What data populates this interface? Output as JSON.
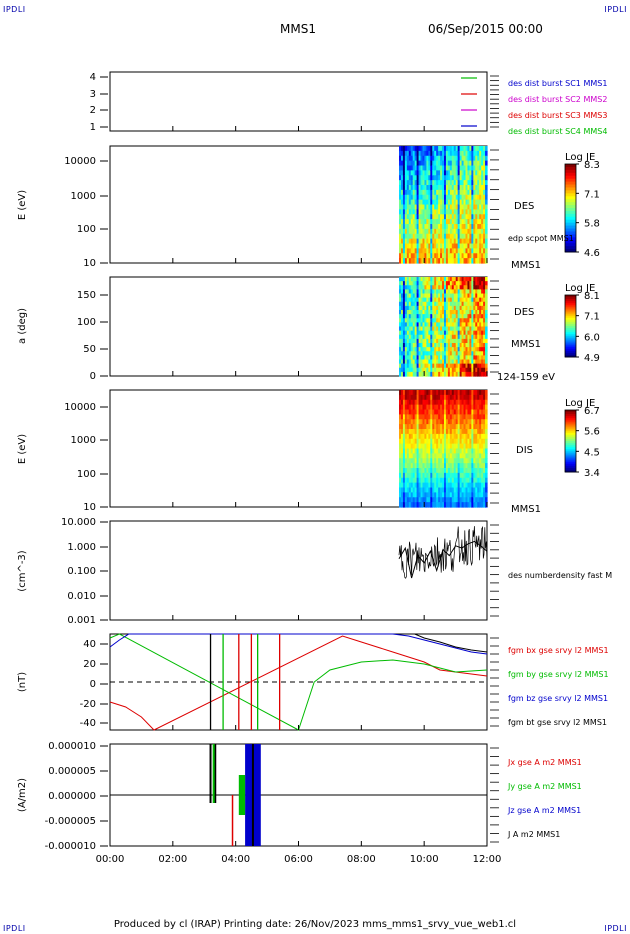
{
  "corners": {
    "top_left": "IPDLI",
    "top_right": "IPDLI",
    "bottom_left": "IPDLI",
    "bottom_right": "IPDLI"
  },
  "header": {
    "spacecraft": "MMS1",
    "datetime": "06/Sep/2015 00:00"
  },
  "footer": {
    "text": "Produced by cl (IRAP)   Printing date: 26/Nov/2023   mms_mms1_srvy_vue_web1.cl"
  },
  "colors": {
    "sc1": "#0000cc",
    "sc2": "#cc00cc",
    "sc3": "#dd0000",
    "sc4": "#00bb00",
    "black": "#000000"
  },
  "chart_data": [
    {
      "type": "line",
      "panel": "spacecraft-availability",
      "yticks": [
        "4",
        "3",
        "2",
        "1"
      ],
      "series": [
        {
          "name": "des dist burst SC1 MMS1",
          "color": "#0000cc"
        },
        {
          "name": "des dist burst SC2 MMS2",
          "color": "#cc00cc"
        },
        {
          "name": "des dist burst SC3 MMS3",
          "color": "#dd0000"
        },
        {
          "name": "des dist burst SC4 MMS4",
          "color": "#00bb00"
        }
      ]
    },
    {
      "type": "heatmap",
      "panel": "des-energy",
      "ylabel": "E (eV)",
      "yticks": [
        "10000",
        "1000",
        "100",
        "10"
      ],
      "side_labels": [
        "DES",
        "edp scpot MMS1",
        "MMS1"
      ],
      "colorbar": {
        "title": "Log JE",
        "ticks": [
          "8.3",
          "7.1",
          "5.8",
          "4.6"
        ],
        "min": 4.6,
        "max": 8.3
      },
      "data_start_hour": 9.2
    },
    {
      "type": "heatmap",
      "panel": "des-pitch",
      "ylabel": "a (deg)",
      "yticks": [
        "150",
        "100",
        "50",
        "0"
      ],
      "side_labels": [
        "DES",
        "MMS1",
        "124-159 eV"
      ],
      "colorbar": {
        "title": "Log JE",
        "ticks": [
          "8.1",
          "7.1",
          "6.0",
          "4.9"
        ],
        "min": 4.9,
        "max": 8.1
      },
      "data_start_hour": 9.2
    },
    {
      "type": "heatmap",
      "panel": "dis-energy",
      "ylabel": "E (eV)",
      "yticks": [
        "10000",
        "1000",
        "100",
        "10"
      ],
      "side_labels": [
        "DIS",
        "MMS1"
      ],
      "colorbar": {
        "title": "Log JE",
        "ticks": [
          "6.7",
          "5.6",
          "4.5",
          "3.4"
        ],
        "min": 3.4,
        "max": 6.7
      },
      "data_start_hour": 9.2
    },
    {
      "type": "line",
      "panel": "density",
      "ylabel": "(cm^-3)",
      "yticks": [
        "10.000",
        "1.000",
        "0.100",
        "0.010",
        "0.001"
      ],
      "yscale": "log",
      "ylim": [
        0.001,
        10
      ],
      "series": [
        {
          "name": "des numberdensity fast M",
          "color": "#000000",
          "x": [
            9.2,
            9.4,
            9.6,
            9.8,
            10.0,
            10.2,
            10.4,
            10.6,
            10.8,
            11.0,
            11.2,
            11.4,
            11.6,
            11.8,
            12.0
          ],
          "y": [
            0.3,
            0.8,
            0.05,
            0.4,
            0.2,
            0.6,
            0.1,
            0.7,
            0.4,
            1.0,
            0.8,
            1.2,
            1.5,
            1.0,
            0.6
          ]
        }
      ]
    },
    {
      "type": "line",
      "panel": "magnetic-field",
      "ylabel": "(nT)",
      "yticks": [
        "40",
        "20",
        "0",
        "-20",
        "-40"
      ],
      "ylim": [
        -48,
        48
      ],
      "series": [
        {
          "name": "fgm bx gse srvy l2 MMS1",
          "color": "#dd0000",
          "x": [
            0,
            0.5,
            1.0,
            1.4,
            7.4,
            8.0,
            9.0,
            10.0,
            10.5,
            11.0,
            11.5,
            12.0
          ],
          "y": [
            -20,
            -25,
            -35,
            -48,
            46,
            40,
            30,
            20,
            12,
            10,
            8,
            6
          ]
        },
        {
          "name": "fgm by gse srvy l2 MMS1",
          "color": "#00bb00",
          "x": [
            0,
            0.3,
            6.0,
            6.5,
            7.0,
            8.0,
            9.0,
            10.0,
            11.0,
            12.0
          ],
          "y": [
            44,
            48,
            -48,
            0,
            12,
            20,
            22,
            18,
            10,
            12
          ]
        },
        {
          "name": "fgm bz gse srvy l2 MMS1",
          "color": "#0000cc",
          "x": [
            0,
            0.3,
            0.6,
            9.0,
            9.5,
            10.0,
            10.5,
            11.0,
            11.5,
            12.0
          ],
          "y": [
            35,
            42,
            48,
            48,
            46,
            42,
            38,
            34,
            30,
            28
          ]
        },
        {
          "name": "fgm bt gse srvy l2 MMS1",
          "color": "#000000",
          "x": [
            9.7,
            10.0,
            10.5,
            11.0,
            11.5,
            12.0
          ],
          "y": [
            48,
            44,
            40,
            35,
            32,
            30
          ]
        }
      ]
    },
    {
      "type": "line",
      "panel": "current-density",
      "ylabel": "(A/m2)",
      "yticks": [
        "0.000010",
        "0.000005",
        "0.000000",
        "-0.000005",
        "-0.000010"
      ],
      "ylim": [
        -1e-05,
        1e-05
      ],
      "series": [
        {
          "name": "Jx gse A m2 MMS1",
          "color": "#dd0000"
        },
        {
          "name": "Jy gse A m2 MMS1",
          "color": "#00bb00"
        },
        {
          "name": "Jz gse A m2 MMS1",
          "color": "#0000cc"
        },
        {
          "name": "J A m2 MMS1",
          "color": "#000000"
        }
      ]
    }
  ],
  "time_axis": {
    "ticks": [
      "00:00",
      "02:00",
      "04:00",
      "06:00",
      "08:00",
      "10:00",
      "12:00"
    ],
    "xlim": [
      0,
      12
    ]
  }
}
